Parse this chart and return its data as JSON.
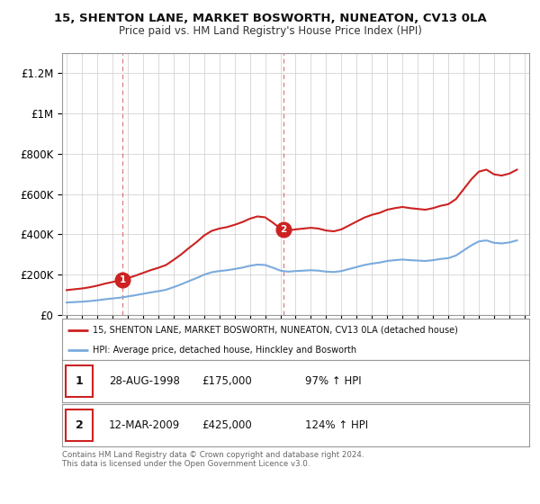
{
  "title1": "15, SHENTON LANE, MARKET BOSWORTH, NUNEATON, CV13 0LA",
  "title2": "Price paid vs. HM Land Registry's House Price Index (HPI)",
  "ylim": [
    0,
    1300000
  ],
  "yticks": [
    0,
    200000,
    400000,
    600000,
    800000,
    1000000,
    1200000
  ],
  "ytick_labels": [
    "£0",
    "£200K",
    "£400K",
    "£600K",
    "£800K",
    "£1M",
    "£1.2M"
  ],
  "sale1_date": 1998.65,
  "sale1_price": 175000,
  "sale1_label": "1",
  "sale2_date": 2009.19,
  "sale2_price": 425000,
  "sale2_label": "2",
  "hpi_color": "#7aaadd",
  "price_color": "#cc2222",
  "dashed_color": "#cc2222",
  "legend_label1": "15, SHENTON LANE, MARKET BOSWORTH, NUNEATON, CV13 0LA (detached house)",
  "legend_label2": "HPI: Average price, detached house, Hinckley and Bosworth",
  "table_row1": [
    "1",
    "28-AUG-1998",
    "£175,000",
    "97% ↑ HPI"
  ],
  "table_row2": [
    "2",
    "12-MAR-2009",
    "£425,000",
    "124% ↑ HPI"
  ],
  "footnote": "Contains HM Land Registry data © Crown copyright and database right 2024.\nThis data is licensed under the Open Government Licence v3.0.",
  "background_color": "#ffffff",
  "grid_color": "#cccccc",
  "years_hpi": [
    1995.0,
    1995.5,
    1996.0,
    1996.5,
    1997.0,
    1997.5,
    1998.0,
    1998.5,
    1999.0,
    1999.5,
    2000.0,
    2000.5,
    2001.0,
    2001.5,
    2002.0,
    2002.5,
    2003.0,
    2003.5,
    2004.0,
    2004.5,
    2005.0,
    2005.5,
    2006.0,
    2006.5,
    2007.0,
    2007.5,
    2008.0,
    2008.5,
    2009.0,
    2009.5,
    2010.0,
    2010.5,
    2011.0,
    2011.5,
    2012.0,
    2012.5,
    2013.0,
    2013.5,
    2014.0,
    2014.5,
    2015.0,
    2015.5,
    2016.0,
    2016.5,
    2017.0,
    2017.5,
    2018.0,
    2018.5,
    2019.0,
    2019.5,
    2020.0,
    2020.5,
    2021.0,
    2021.5,
    2022.0,
    2022.5,
    2023.0,
    2023.5,
    2024.0,
    2024.5
  ],
  "hpi_values": [
    62000,
    64000,
    66000,
    69000,
    73000,
    78000,
    82000,
    86000,
    92000,
    98000,
    105000,
    112000,
    118000,
    125000,
    138000,
    152000,
    168000,
    183000,
    200000,
    212000,
    218000,
    222000,
    228000,
    235000,
    244000,
    250000,
    248000,
    235000,
    220000,
    215000,
    218000,
    220000,
    222000,
    220000,
    215000,
    213000,
    218000,
    228000,
    238000,
    248000,
    255000,
    260000,
    268000,
    272000,
    275000,
    272000,
    270000,
    268000,
    272000,
    278000,
    282000,
    295000,
    320000,
    345000,
    365000,
    370000,
    358000,
    355000,
    360000,
    370000
  ]
}
